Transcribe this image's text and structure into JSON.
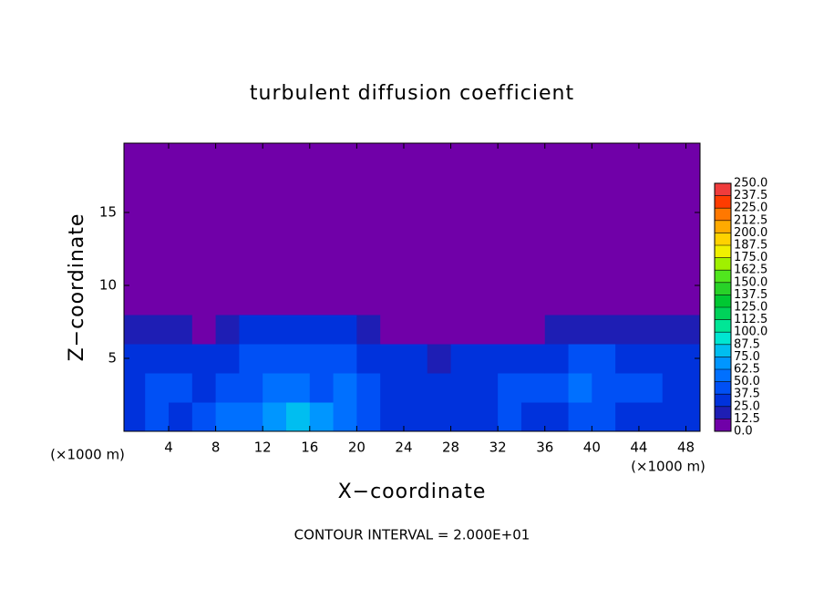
{
  "chart_data": {
    "type": "heatmap",
    "title": "turbulent diffusion coefficient",
    "xlabel": "X−coordinate",
    "ylabel": "Z−coordinate",
    "x_unit": "(×1000 m)",
    "y_unit": "(×1000 m)",
    "note": "CONTOUR INTERVAL = 2.000E+01",
    "xlim": [
      0.2,
      49.2
    ],
    "ylim": [
      0,
      19.75
    ],
    "xticks": [
      4,
      8,
      12,
      16,
      20,
      24,
      28,
      32,
      36,
      40,
      44,
      48
    ],
    "yticks": [
      5,
      10,
      15
    ],
    "x": [
      1,
      3,
      5,
      7,
      9,
      11,
      13,
      15,
      17,
      19,
      21,
      23,
      25,
      27,
      29,
      31,
      33,
      35,
      37,
      39,
      41,
      43,
      45,
      47,
      49
    ],
    "y": [
      1,
      3,
      5,
      7,
      9,
      11,
      13,
      15,
      17,
      19
    ],
    "values": [
      [
        35,
        40,
        35,
        45,
        50,
        60,
        70,
        75,
        70,
        55,
        40,
        35,
        35,
        30,
        30,
        35,
        40,
        35,
        35,
        45,
        40,
        35,
        35,
        35,
        35
      ],
      [
        35,
        45,
        40,
        35,
        40,
        45,
        50,
        50,
        45,
        50,
        45,
        35,
        30,
        30,
        30,
        35,
        40,
        45,
        40,
        50,
        45,
        40,
        40,
        35,
        35
      ],
      [
        30,
        35,
        30,
        30,
        35,
        40,
        45,
        40,
        40,
        45,
        35,
        30,
        25,
        20,
        25,
        30,
        35,
        35,
        30,
        40,
        40,
        35,
        30,
        30,
        30
      ],
      [
        15,
        15,
        15,
        10,
        15,
        25,
        30,
        30,
        30,
        30,
        20,
        10,
        5,
        5,
        5,
        5,
        10,
        10,
        15,
        15,
        15,
        15,
        15,
        15,
        15
      ],
      [
        0,
        0,
        0,
        0,
        0,
        0,
        0,
        0,
        0,
        0,
        0,
        0,
        0,
        0,
        0,
        0,
        0,
        0,
        0,
        0,
        0,
        0,
        0,
        0,
        0
      ],
      [
        0,
        0,
        0,
        0,
        0,
        0,
        0,
        0,
        0,
        0,
        0,
        0,
        0,
        0,
        0,
        0,
        0,
        0,
        0,
        0,
        0,
        0,
        0,
        0,
        0
      ],
      [
        0,
        0,
        0,
        0,
        0,
        0,
        0,
        0,
        0,
        0,
        0,
        0,
        0,
        0,
        0,
        0,
        0,
        0,
        0,
        0,
        0,
        0,
        0,
        0,
        0
      ],
      [
        0,
        0,
        0,
        0,
        0,
        0,
        0,
        0,
        0,
        0,
        0,
        0,
        0,
        0,
        0,
        0,
        0,
        0,
        0,
        0,
        0,
        0,
        0,
        0,
        0
      ],
      [
        0,
        0,
        0,
        0,
        0,
        0,
        0,
        0,
        0,
        0,
        0,
        0,
        0,
        0,
        0,
        0,
        0,
        0,
        0,
        0,
        0,
        0,
        0,
        0,
        0
      ],
      [
        0,
        0,
        0,
        0,
        0,
        0,
        0,
        0,
        0,
        0,
        0,
        0,
        0,
        0,
        0,
        0,
        0,
        0,
        0,
        0,
        0,
        0,
        0,
        0,
        0
      ]
    ],
    "colorbar": {
      "levels": [
        {
          "value": 0,
          "label": "0.0"
        },
        {
          "value": 12.5,
          "label": "12.5"
        },
        {
          "value": 25,
          "label": "25.0"
        },
        {
          "value": 37.5,
          "label": "37.5"
        },
        {
          "value": 50,
          "label": "50.0"
        },
        {
          "value": 62.5,
          "label": "62.5"
        },
        {
          "value": 75,
          "label": "75.0"
        },
        {
          "value": 87.5,
          "label": "87.5"
        },
        {
          "value": 100,
          "label": "100.0"
        },
        {
          "value": 112.5,
          "label": "112.5"
        },
        {
          "value": 125,
          "label": "125.0"
        },
        {
          "value": 137.5,
          "label": "137.5"
        },
        {
          "value": 150,
          "label": "150.0"
        },
        {
          "value": 162.5,
          "label": "162.5"
        },
        {
          "value": 175,
          "label": "175.0"
        },
        {
          "value": 187.5,
          "label": "187.5"
        },
        {
          "value": 200,
          "label": "200.0"
        },
        {
          "value": 212.5,
          "label": "212.5"
        },
        {
          "value": 225,
          "label": "225.0"
        },
        {
          "value": 237.5,
          "label": "237.5"
        },
        {
          "value": 250,
          "label": "250.0"
        }
      ],
      "colors": [
        "#7000a8",
        "#1e1eb4",
        "#0032dc",
        "#0050f5",
        "#0070ff",
        "#0096ff",
        "#00bef0",
        "#00e6d2",
        "#00e696",
        "#00d25a",
        "#00c832",
        "#28d228",
        "#50e61e",
        "#a0f000",
        "#f0f000",
        "#ffd200",
        "#ffaa00",
        "#ff7800",
        "#ff3c00",
        "#f03c3c"
      ]
    }
  }
}
